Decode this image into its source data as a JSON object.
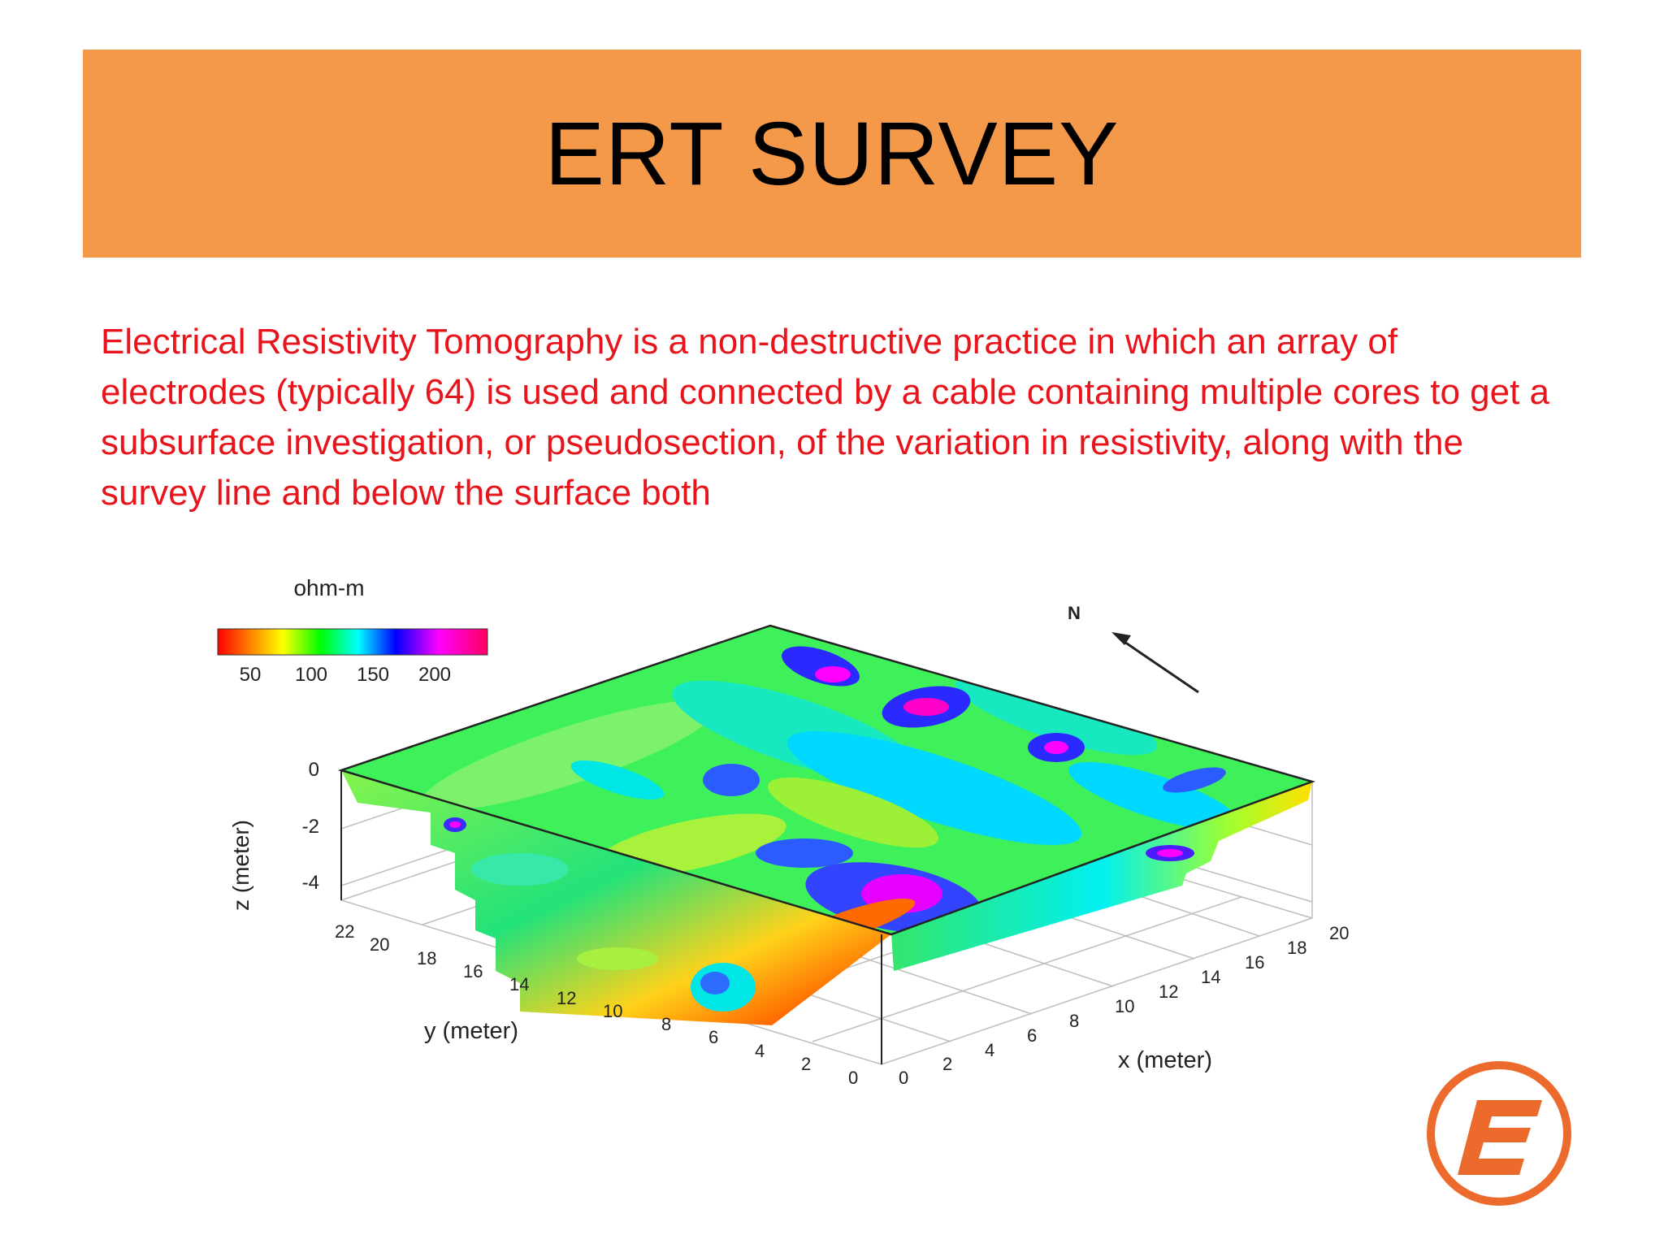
{
  "slide": {
    "title": "ERT SURVEY",
    "body": "Electrical Resistivity Tomography is a non-destructive practice in which an array of electrodes (typically 64) is used and connected by a cable containing multiple cores to get a subsurface investigation, or pseudosection, of the variation in resistivity, along with the survey line and below the surface both"
  },
  "figure": {
    "colorbar_unit": "ohm-m",
    "colorbar_ticks": [
      "50",
      "100",
      "150",
      "200"
    ],
    "north_label": "N",
    "z_axis_label": "z (meter)",
    "z_ticks": [
      "0",
      "-2",
      "-4"
    ],
    "y_axis_label": "y (meter)",
    "y_ticks": [
      "22",
      "20",
      "18",
      "16",
      "14",
      "12",
      "10",
      "8",
      "6",
      "4",
      "2",
      "0"
    ],
    "x_axis_label": "x (meter)",
    "x_ticks": [
      "0",
      "2",
      "4",
      "6",
      "8",
      "10",
      "12",
      "14",
      "16",
      "18",
      "20"
    ],
    "colormap": [
      "#ff0000",
      "#ff8000",
      "#ffff00",
      "#00ff00",
      "#00ffff",
      "#0000ff",
      "#ff00ff",
      "#ff0060"
    ]
  },
  "logo": {
    "icon": "company-logo-icon",
    "color": "#ec6a2c"
  }
}
